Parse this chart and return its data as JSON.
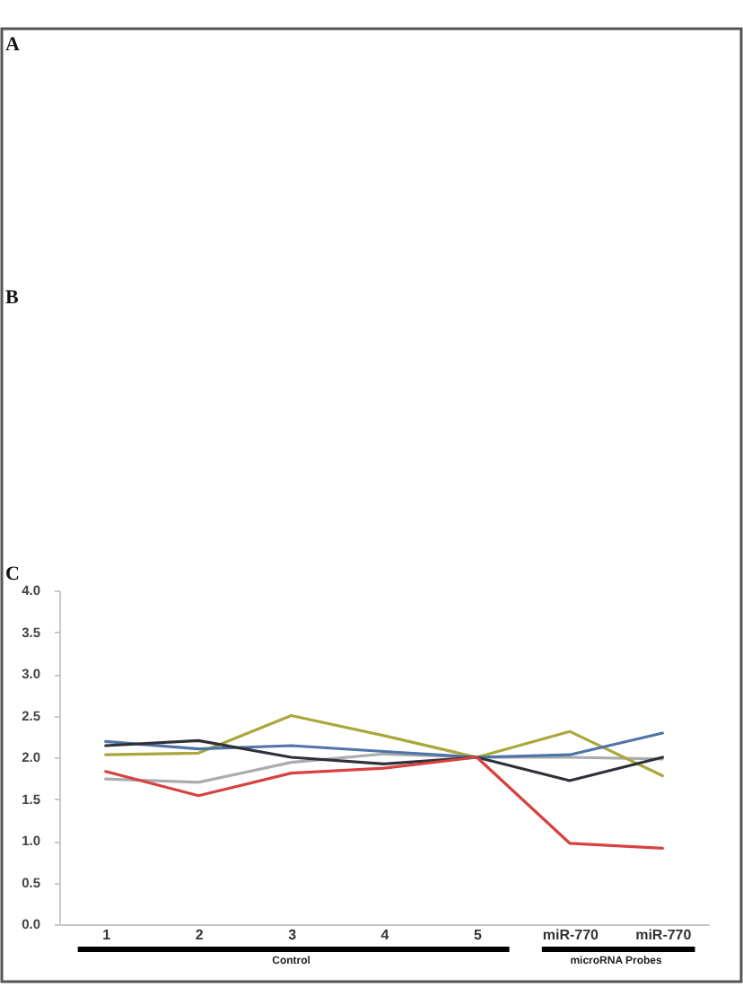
{
  "chart_data": [
    {
      "type": "other",
      "title": "A"
    },
    {
      "type": "other",
      "title": "B"
    },
    {
      "type": "line",
      "title": "C",
      "categories": [
        "1",
        "2",
        "3",
        "4",
        "5",
        "miR-770",
        "miR-770"
      ],
      "series": [
        {
          "color": "#a9abae",
          "values": [
            1.74,
            1.7,
            1.94,
            2.04,
            2.0,
            2.0,
            1.98
          ]
        },
        {
          "color": "#a9a83c",
          "values": [
            2.03,
            2.05,
            2.5,
            2.26,
            2.0,
            2.31,
            1.78
          ]
        },
        {
          "color": "#4f74a8",
          "values": [
            2.19,
            2.1,
            2.14,
            2.07,
            2.0,
            2.03,
            2.29
          ]
        },
        {
          "color": "#2e3138",
          "values": [
            2.14,
            2.2,
            2.0,
            1.92,
            2.0,
            1.72,
            2.0
          ]
        },
        {
          "color": "#d9413e",
          "values": [
            1.83,
            1.54,
            1.81,
            1.87,
            2.0,
            0.97,
            0.91
          ]
        }
      ],
      "ylim": [
        0,
        4
      ],
      "yticks": [
        {
          "value": 0,
          "label": "0.0"
        },
        0.5,
        {
          "value": 1,
          "label": "1.0"
        },
        1.5,
        {
          "value": 2,
          "label": "2.0"
        },
        2.5,
        {
          "value": 3,
          "label": "3.0"
        },
        3.5,
        {
          "value": 4,
          "label": "4.0"
        }
      ],
      "annotations": [
        "Control",
        "microRNA Probes"
      ]
    }
  ]
}
